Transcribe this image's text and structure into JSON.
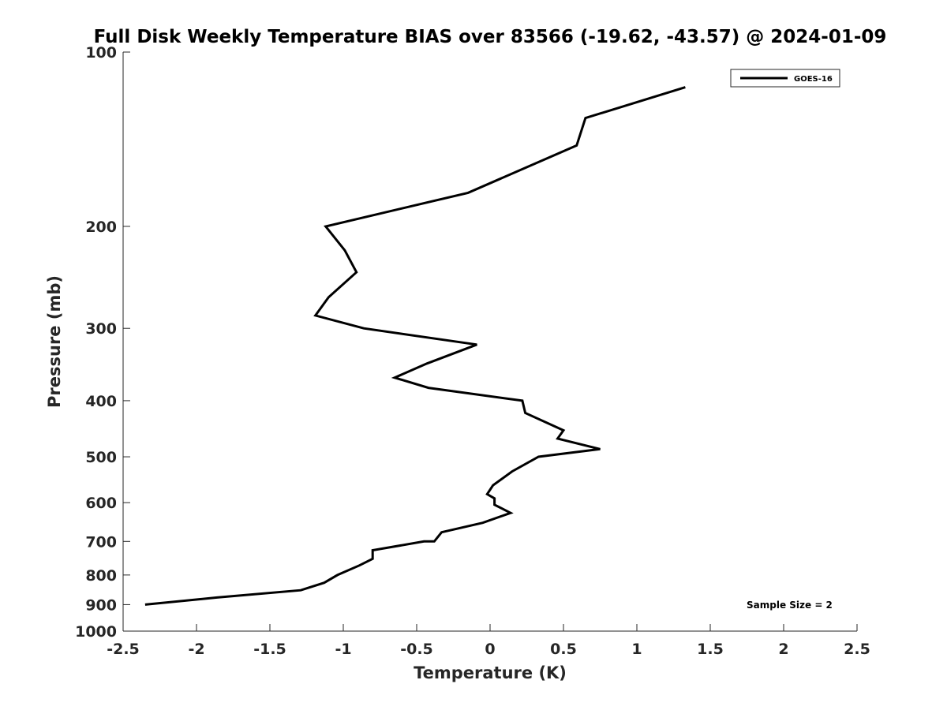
{
  "chart_data": {
    "type": "line",
    "title": "Full Disk Weekly Temperature BIAS over 83566 (-19.62, -43.57) @ 2024-01-09",
    "xlabel": "Temperature (K)",
    "ylabel": "Pressure (mb)",
    "xlim": [
      -2.5,
      2.5
    ],
    "ylim": [
      100,
      1000
    ],
    "y_scale": "log",
    "y_reversed": true,
    "x_ticks": [
      -2.5,
      -2,
      -1.5,
      -1,
      -0.5,
      0,
      0.5,
      1,
      1.5,
      2,
      2.5
    ],
    "x_tick_labels": [
      "-2.5",
      "-2",
      "-1.5",
      "-1",
      "-0.5",
      "0",
      "0.5",
      "1",
      "1.5",
      "2",
      "2.5"
    ],
    "y_ticks": [
      100,
      200,
      300,
      400,
      500,
      600,
      700,
      800,
      900,
      1000
    ],
    "y_tick_labels": [
      "100",
      "200",
      "300",
      "400",
      "500",
      "600",
      "700",
      "800",
      "900",
      "1000"
    ],
    "grid": false,
    "legend_position": "top-right",
    "series": [
      {
        "name": "GOES-16",
        "color": "#000000",
        "x": [
          1.33,
          0.65,
          0.59,
          -0.15,
          -1.12,
          -0.99,
          -0.91,
          -1.1,
          -1.19,
          -0.86,
          -0.09,
          -0.43,
          -0.65,
          -0.42,
          0.22,
          0.24,
          0.5,
          0.46,
          0.75,
          0.33,
          0.15,
          0.02,
          -0.02,
          0.03,
          0.03,
          0.14,
          -0.05,
          -0.33,
          -0.38,
          -0.45,
          -0.8,
          -0.8,
          -0.89,
          -1.04,
          -1.13,
          -1.29,
          -1.86,
          -2.35
        ],
        "y": [
          115,
          130,
          145,
          175,
          200,
          220,
          240,
          265,
          285,
          300,
          320,
          345,
          365,
          380,
          400,
          420,
          450,
          465,
          485,
          500,
          530,
          560,
          580,
          590,
          605,
          625,
          650,
          675,
          700,
          700,
          725,
          750,
          770,
          800,
          825,
          850,
          875,
          900
        ]
      }
    ],
    "annotations": [
      {
        "text": "Sample Size = 2",
        "position": "bottom-right"
      }
    ]
  }
}
